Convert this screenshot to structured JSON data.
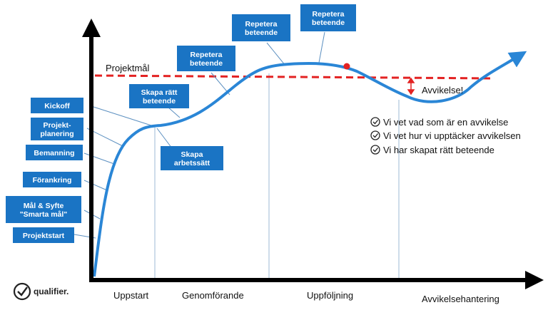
{
  "goal_label": "Projektmål",
  "deviation_label": "Avvikelse!",
  "logo": {
    "text": "qualifier.",
    "icon": "check-circle-icon"
  },
  "phases": [
    "Uppstart",
    "Genomförande",
    "Uppföljning",
    "Avvikelsehantering"
  ],
  "boxes": [
    {
      "id": "kickoff",
      "lines": [
        "Kickoff"
      ]
    },
    {
      "id": "projektplanering",
      "lines": [
        "Projekt-",
        "planering"
      ]
    },
    {
      "id": "bemanning",
      "lines": [
        "Bemanning"
      ]
    },
    {
      "id": "forankring",
      "lines": [
        "Förankring"
      ]
    },
    {
      "id": "mal-syfte",
      "lines": [
        "Mål & Syfte",
        "\"Smarta mål\""
      ]
    },
    {
      "id": "projektstart",
      "lines": [
        "Projektstart"
      ]
    },
    {
      "id": "skapa-ratt-beteende",
      "lines": [
        "Skapa rätt",
        "beteende"
      ]
    },
    {
      "id": "skapa-arbetssatt",
      "lines": [
        "Skapa",
        "arbetssätt"
      ]
    },
    {
      "id": "repetera-1",
      "lines": [
        "Repetera",
        "beteende"
      ]
    },
    {
      "id": "repetera-2",
      "lines": [
        "Repetera",
        "beteende"
      ]
    },
    {
      "id": "repetera-3",
      "lines": [
        "Repetera",
        "beteende"
      ]
    }
  ],
  "checklist": [
    "Vi vet vad som är en avvikelse",
    "Vi vet hur vi upptäcker avvikelsen",
    "Vi har skapat rätt beteende"
  ],
  "colors": {
    "box": "#1a74c4",
    "curve": "#2a86d6",
    "goal_line": "#e32222",
    "axis": "#000000",
    "leader": "#5b8fc0"
  }
}
